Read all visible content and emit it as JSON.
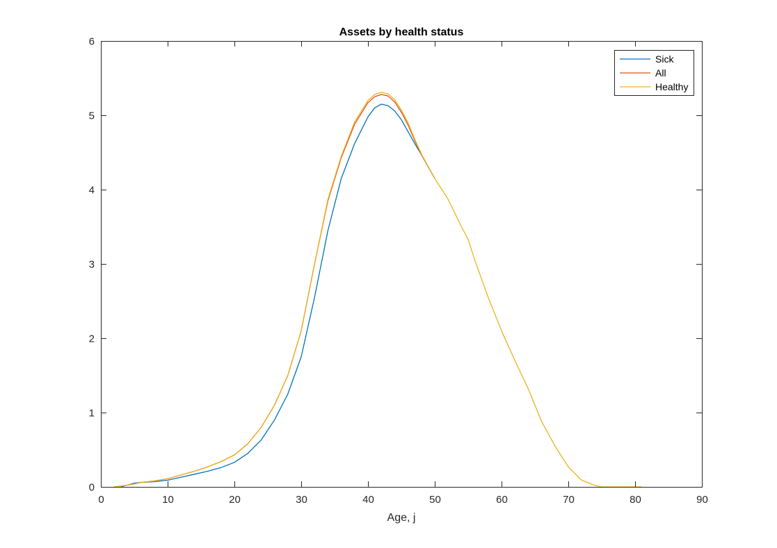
{
  "chart_data": {
    "type": "line",
    "title": "Assets by health status",
    "xlabel": "Age, j",
    "ylabel": "",
    "xlim": [
      0,
      90
    ],
    "ylim": [
      0,
      6
    ],
    "xticks": [
      "0",
      "10",
      "20",
      "30",
      "40",
      "50",
      "60",
      "70",
      "80",
      "90"
    ],
    "yticks": [
      "0",
      "1",
      "2",
      "3",
      "4",
      "5",
      "6"
    ],
    "grid": false,
    "legend_position": "top-right",
    "series": [
      {
        "name": "Sick",
        "color": "#0072BD",
        "points": [
          [
            3,
            0
          ],
          [
            5,
            0.05
          ],
          [
            6,
            0.06
          ],
          [
            8,
            0.07
          ],
          [
            10,
            0.09
          ],
          [
            12,
            0.13
          ],
          [
            14,
            0.17
          ],
          [
            16,
            0.21
          ],
          [
            18,
            0.26
          ],
          [
            20,
            0.33
          ],
          [
            22,
            0.45
          ],
          [
            24,
            0.63
          ],
          [
            26,
            0.9
          ],
          [
            28,
            1.25
          ],
          [
            30,
            1.75
          ],
          [
            32,
            2.55
          ],
          [
            34,
            3.45
          ],
          [
            36,
            4.15
          ],
          [
            38,
            4.62
          ],
          [
            40,
            4.98
          ],
          [
            41,
            5.1
          ],
          [
            42,
            5.15
          ],
          [
            43,
            5.13
          ],
          [
            44,
            5.06
          ],
          [
            45,
            4.94
          ],
          [
            46,
            4.78
          ],
          [
            47,
            4.62
          ],
          [
            48,
            4.47
          ],
          [
            50,
            4.15
          ]
        ]
      },
      {
        "name": "All",
        "color": "#D95319",
        "points": [
          [
            2,
            0
          ],
          [
            3,
            0.01
          ],
          [
            5,
            0.04
          ],
          [
            6,
            0.06
          ],
          [
            8,
            0.08
          ],
          [
            10,
            0.11
          ],
          [
            12,
            0.16
          ],
          [
            14,
            0.21
          ],
          [
            16,
            0.27
          ],
          [
            18,
            0.34
          ],
          [
            20,
            0.43
          ],
          [
            22,
            0.58
          ],
          [
            24,
            0.8
          ],
          [
            26,
            1.1
          ],
          [
            28,
            1.5
          ],
          [
            30,
            2.1
          ],
          [
            32,
            3.0
          ],
          [
            34,
            3.85
          ],
          [
            36,
            4.43
          ],
          [
            38,
            4.88
          ],
          [
            40,
            5.17
          ],
          [
            41,
            5.25
          ],
          [
            42,
            5.28
          ],
          [
            43,
            5.26
          ],
          [
            44,
            5.18
          ],
          [
            45,
            5.04
          ],
          [
            46,
            4.87
          ],
          [
            47,
            4.66
          ],
          [
            48,
            4.47
          ],
          [
            50,
            4.15
          ]
        ]
      },
      {
        "name": "Healthy",
        "color": "#EDB120",
        "points": [
          [
            2,
            0
          ],
          [
            3,
            0.01
          ],
          [
            5,
            0.04
          ],
          [
            6,
            0.06
          ],
          [
            8,
            0.08
          ],
          [
            10,
            0.11
          ],
          [
            12,
            0.16
          ],
          [
            14,
            0.21
          ],
          [
            16,
            0.27
          ],
          [
            18,
            0.34
          ],
          [
            20,
            0.43
          ],
          [
            22,
            0.58
          ],
          [
            24,
            0.8
          ],
          [
            26,
            1.1
          ],
          [
            28,
            1.5
          ],
          [
            30,
            2.1
          ],
          [
            32,
            3.0
          ],
          [
            34,
            3.87
          ],
          [
            36,
            4.45
          ],
          [
            38,
            4.91
          ],
          [
            40,
            5.2
          ],
          [
            41,
            5.28
          ],
          [
            42,
            5.31
          ],
          [
            43,
            5.29
          ],
          [
            44,
            5.21
          ],
          [
            45,
            5.07
          ],
          [
            46,
            4.9
          ],
          [
            47,
            4.68
          ],
          [
            48,
            4.48
          ],
          [
            50,
            4.15
          ],
          [
            52,
            3.87
          ],
          [
            54,
            3.5
          ],
          [
            55,
            3.33
          ],
          [
            56,
            3.05
          ],
          [
            58,
            2.55
          ],
          [
            60,
            2.1
          ],
          [
            62,
            1.7
          ],
          [
            64,
            1.32
          ],
          [
            66,
            0.88
          ],
          [
            68,
            0.55
          ],
          [
            70,
            0.27
          ],
          [
            72,
            0.09
          ],
          [
            74,
            0.02
          ],
          [
            75,
            0
          ],
          [
            80,
            0
          ],
          [
            81,
            0
          ]
        ]
      }
    ]
  }
}
